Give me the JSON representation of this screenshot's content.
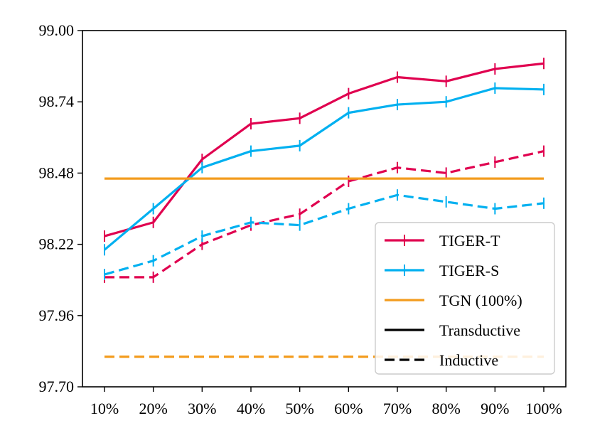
{
  "chart_data": {
    "type": "line",
    "title": "",
    "xlabel": "",
    "ylabel": "",
    "categories": [
      "10%",
      "20%",
      "30%",
      "40%",
      "50%",
      "60%",
      "70%",
      "80%",
      "90%",
      "100%"
    ],
    "ylim": [
      97.7,
      99.0
    ],
    "yticks": [
      "97.70",
      "97.96",
      "98.22",
      "98.48",
      "98.74",
      "99.00"
    ],
    "grid": false,
    "legend_position": "lower-right",
    "series": [
      {
        "name": "TIGER-T",
        "mode": "Transductive",
        "color": "#e0004f",
        "error_bars": true,
        "values": [
          98.25,
          98.3,
          98.53,
          98.66,
          98.68,
          98.77,
          98.83,
          98.815,
          98.86,
          98.88
        ]
      },
      {
        "name": "TIGER-S",
        "mode": "Transductive",
        "color": "#00b0f0",
        "error_bars": true,
        "values": [
          98.2,
          98.35,
          98.5,
          98.56,
          98.58,
          98.7,
          98.73,
          98.74,
          98.79,
          98.785
        ]
      },
      {
        "name": "TIGER-T",
        "mode": "Inductive",
        "color": "#e0004f",
        "error_bars": true,
        "values": [
          98.1,
          98.1,
          98.22,
          98.29,
          98.33,
          98.45,
          98.5,
          98.48,
          98.52,
          98.56
        ]
      },
      {
        "name": "TIGER-S",
        "mode": "Inductive",
        "color": "#00b0f0",
        "error_bars": true,
        "values": [
          98.11,
          98.16,
          98.25,
          98.3,
          98.29,
          98.35,
          98.4,
          98.375,
          98.35,
          98.37
        ]
      },
      {
        "name": "TGN (100%)",
        "mode": "Transductive",
        "color": "#f39c1e",
        "error_bars": false,
        "values": [
          98.46,
          98.46,
          98.46,
          98.46,
          98.46,
          98.46,
          98.46,
          98.46,
          98.46,
          98.46
        ]
      },
      {
        "name": "TGN (100%)",
        "mode": "Inductive",
        "color": "#f39c1e",
        "error_bars": false,
        "values": [
          97.81,
          97.81,
          97.81,
          97.81,
          97.81,
          97.81,
          97.81,
          97.81,
          97.81,
          97.81
        ]
      }
    ],
    "legend": [
      {
        "label": "TIGER-T",
        "color": "#e0004f",
        "style": "solid",
        "marker": "plus"
      },
      {
        "label": "TIGER-S",
        "color": "#00b0f0",
        "style": "solid",
        "marker": "plus"
      },
      {
        "label": "TGN (100%)",
        "color": "#f39c1e",
        "style": "solid",
        "marker": "none"
      },
      {
        "label": "Transductive",
        "color": "#000000",
        "style": "solid",
        "marker": "none"
      },
      {
        "label": "Inductive",
        "color": "#000000",
        "style": "dashed",
        "marker": "none"
      }
    ]
  }
}
